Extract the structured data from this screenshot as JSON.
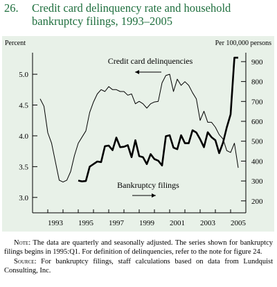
{
  "figure": {
    "number": "26.",
    "title": "Credit card delinquency rate and household bankruptcy filings, 1993–2005"
  },
  "chart_data": {
    "type": "line",
    "left_axis": {
      "unit_label": "Percent",
      "range": [
        2.75,
        5.35
      ],
      "ticks": [
        3.0,
        3.5,
        4.0,
        4.5,
        5.0
      ],
      "tick_labels": [
        "3.0",
        "3.5",
        "4.0",
        "4.5",
        "5.0"
      ]
    },
    "right_axis": {
      "unit_label": "Per 100,000 persons",
      "range": [
        140,
        945
      ],
      "ticks": [
        200,
        300,
        400,
        500,
        600,
        700,
        800,
        900
      ],
      "tick_labels": [
        "200",
        "300",
        "400",
        "500",
        "600",
        "700",
        "800",
        "900"
      ]
    },
    "x_axis": {
      "range": [
        1992.0,
        2006.0
      ],
      "tick_labels": [
        "1993",
        "1995",
        "1997",
        "1999",
        "2001",
        "2003",
        "2005"
      ],
      "tick_label_years": [
        1993,
        1995,
        1997,
        1999,
        2001,
        2003,
        2005
      ]
    },
    "grid": false,
    "series": [
      {
        "name": "Credit card delinquencies",
        "axis": "left",
        "style": "thin",
        "arrow": "left",
        "x": [
          1992.5,
          1992.75,
          1993.0,
          1993.25,
          1993.5,
          1993.75,
          1994.0,
          1994.25,
          1994.5,
          1994.75,
          1995.0,
          1995.25,
          1995.5,
          1995.75,
          1996.0,
          1996.25,
          1996.5,
          1996.75,
          1997.0,
          1997.25,
          1997.5,
          1997.75,
          1998.0,
          1998.25,
          1998.5,
          1998.75,
          1999.0,
          1999.25,
          1999.5,
          1999.75,
          2000.0,
          2000.25,
          2000.5,
          2000.75,
          2001.0,
          2001.25,
          2001.5,
          2001.75,
          2002.0,
          2002.25,
          2002.5,
          2002.75,
          2003.0,
          2003.25,
          2003.5,
          2003.75,
          2004.0,
          2004.25,
          2004.5,
          2004.75,
          2005.0,
          2005.25,
          2005.5
        ],
        "values": [
          4.6,
          4.48,
          4.05,
          3.88,
          3.58,
          3.28,
          3.25,
          3.28,
          3.42,
          3.68,
          3.88,
          3.98,
          4.08,
          4.38,
          4.55,
          4.68,
          4.75,
          4.72,
          4.8,
          4.75,
          4.75,
          4.72,
          4.72,
          4.66,
          4.68,
          4.52,
          4.56,
          4.52,
          4.45,
          4.52,
          4.55,
          4.56,
          4.86,
          4.98,
          5.0,
          4.72,
          4.92,
          4.82,
          4.88,
          4.82,
          4.7,
          4.6,
          4.25,
          4.4,
          4.22,
          4.22,
          4.14,
          4.02,
          3.95,
          3.76,
          3.73,
          3.88,
          3.48
        ]
      },
      {
        "name": "Bankruptcy filings",
        "axis": "right",
        "style": "thick",
        "arrow": "right",
        "x": [
          1995.0,
          1995.25,
          1995.5,
          1995.75,
          1996.0,
          1996.25,
          1996.5,
          1996.75,
          1997.0,
          1997.25,
          1997.5,
          1997.75,
          1998.0,
          1998.25,
          1998.5,
          1998.75,
          1999.0,
          1999.25,
          1999.5,
          1999.75,
          2000.0,
          2000.25,
          2000.5,
          2000.75,
          2001.0,
          2001.25,
          2001.5,
          2001.75,
          2002.0,
          2002.25,
          2002.5,
          2002.75,
          2003.0,
          2003.25,
          2003.5,
          2003.75,
          2004.0,
          2004.25,
          2004.5,
          2004.75,
          2005.0,
          2005.25,
          2005.5
        ],
        "values": [
          302,
          298,
          300,
          372,
          385,
          398,
          395,
          475,
          478,
          455,
          518,
          470,
          472,
          480,
          420,
          505,
          425,
          420,
          385,
          435,
          410,
          402,
          378,
          525,
          530,
          468,
          460,
          530,
          490,
          490,
          555,
          544,
          510,
          470,
          545,
          520,
          505,
          440,
          492,
          570,
          635,
          920,
          920
        ]
      }
    ],
    "annotations": [
      {
        "text": "Credit card delinquencies",
        "arrow_direction": "left"
      },
      {
        "text": "Bankruptcy filings",
        "arrow_direction": "right"
      }
    ]
  },
  "notes": {
    "note_label": "Note",
    "note_text": ": The data are quarterly and seasonally adjusted. The series shown for bankruptcy filings begins in 1995:Q1. For definition of delinquencies, refer to the note for figure 24.",
    "source_label": "Source",
    "source_text": ": For bankruptcy filings, staff calculations based on data from Lundquist Consulting, Inc."
  }
}
